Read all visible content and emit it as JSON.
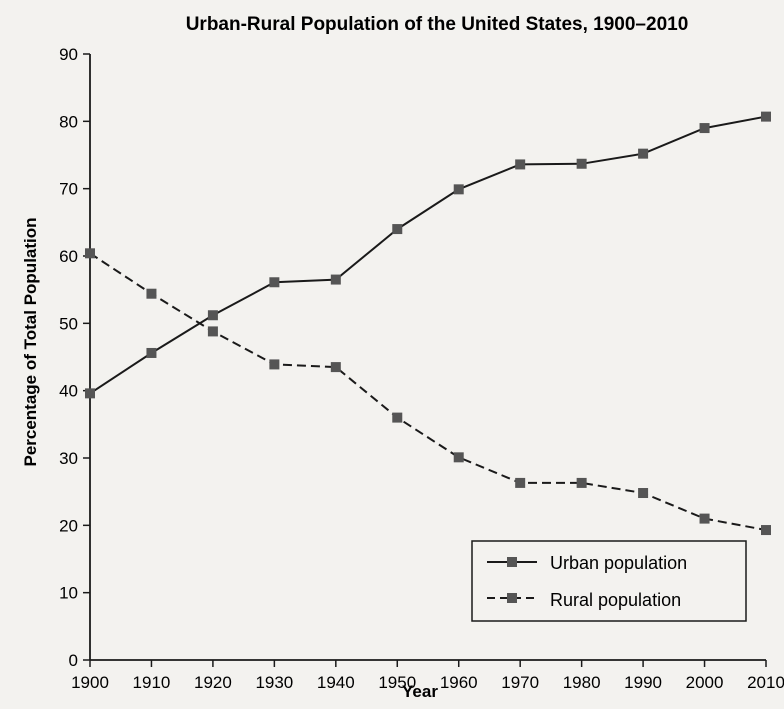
{
  "chart_data": {
    "type": "line",
    "title": "Urban-Rural Population of the United States, 1900–2010",
    "xlabel": "Year",
    "ylabel": "Percentage of Total Population",
    "x": [
      1900,
      1910,
      1920,
      1930,
      1940,
      1950,
      1960,
      1970,
      1980,
      1990,
      2000,
      2010
    ],
    "xticks": [
      1900,
      1910,
      1920,
      1930,
      1940,
      1950,
      1960,
      1970,
      1980,
      1990,
      2000,
      2010
    ],
    "yticks": [
      0,
      10,
      20,
      30,
      40,
      50,
      60,
      70,
      80,
      90
    ],
    "xlim": [
      1900,
      2010
    ],
    "ylim": [
      0,
      90
    ],
    "grid": false,
    "legend_position": "bottom-right",
    "series": [
      {
        "name": "Urban population",
        "line_style": "solid",
        "marker": "square",
        "color": "#1a1a1a",
        "values": [
          39.6,
          45.6,
          51.2,
          56.1,
          56.5,
          64.0,
          69.9,
          73.6,
          73.7,
          75.2,
          79.0,
          80.7
        ]
      },
      {
        "name": "Rural population",
        "line_style": "dashed",
        "marker": "square",
        "color": "#1a1a1a",
        "values": [
          60.4,
          54.4,
          48.8,
          43.9,
          43.5,
          36.0,
          30.1,
          26.3,
          26.3,
          24.8,
          21.0,
          19.3
        ]
      }
    ]
  }
}
